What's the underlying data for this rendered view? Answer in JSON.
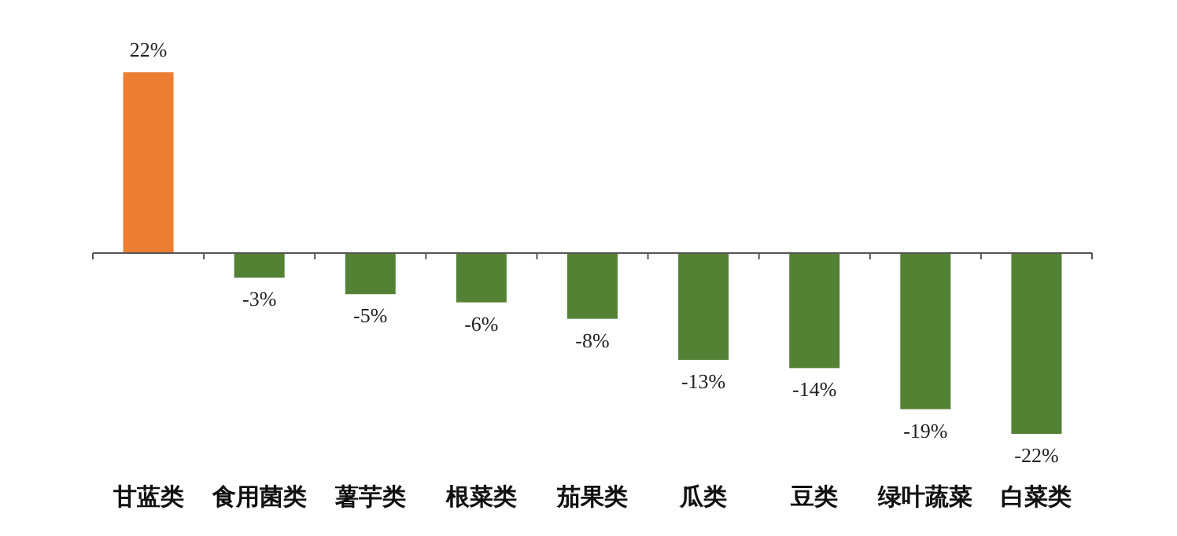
{
  "chart_data": {
    "type": "bar",
    "categories": [
      "甘蓝类",
      "食用菌类",
      "薯芋类",
      "根菜类",
      "茄果类",
      "瓜类",
      "豆类",
      "绿叶蔬菜",
      "白菜类"
    ],
    "values": [
      22,
      -3,
      -5,
      -6,
      -8,
      -13,
      -14,
      -19,
      -22
    ],
    "colors": [
      "#ed7d31",
      "#548235",
      "#548235",
      "#548235",
      "#548235",
      "#548235",
      "#548235",
      "#548235",
      "#548235"
    ],
    "value_labels": [
      "22%",
      "-3%",
      "-5%",
      "-6%",
      "-8%",
      "-13%",
      "-14%",
      "-19%",
      "-22%"
    ]
  }
}
